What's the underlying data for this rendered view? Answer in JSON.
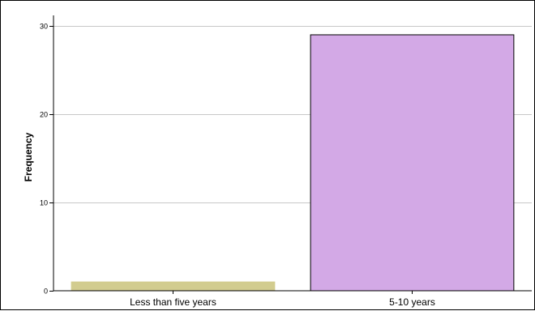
{
  "chart_data": {
    "type": "bar",
    "title": "",
    "xlabel": "",
    "ylabel": "Frequency",
    "categories": [
      "Less than five years",
      "5-10 years"
    ],
    "values": [
      1,
      29
    ],
    "bar_colors": [
      "#d2cc8f",
      "#d3a9e6"
    ],
    "bar_edge_colors": [
      "#d2cc8f",
      "#000000"
    ],
    "ylim": [
      0,
      31.2
    ],
    "yticks": [
      0,
      10,
      20,
      30
    ],
    "grid": true,
    "legend": "none"
  }
}
